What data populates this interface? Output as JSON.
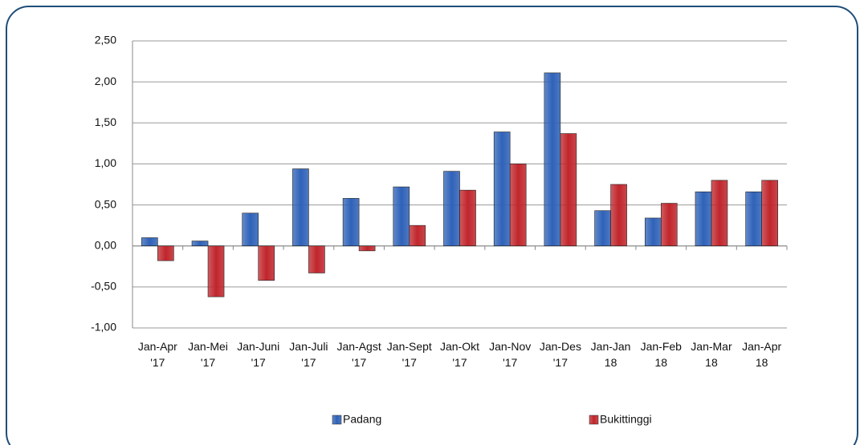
{
  "chart_data": {
    "type": "bar",
    "categories": [
      "Jan-Apr\n'17",
      "Jan-Mei\n'17",
      "Jan-Juni\n'17",
      "Jan-Juli\n'17",
      "Jan-Agst\n'17",
      "Jan-Sept\n'17",
      "Jan-Okt\n'17",
      "Jan-Nov\n'17",
      "Jan-Des\n'17",
      "Jan-Jan\n18",
      "Jan-Feb\n18",
      "Jan-Mar\n18",
      "Jan-Apr\n18"
    ],
    "series": [
      {
        "name": "Padang",
        "color": "#2f62b8",
        "values": [
          0.1,
          0.06,
          0.4,
          0.94,
          0.58,
          0.72,
          0.91,
          1.39,
          2.11,
          0.43,
          0.34,
          0.66,
          0.66
        ]
      },
      {
        "name": "Bukittinggi",
        "color": "#c0262c",
        "values": [
          -0.18,
          -0.62,
          -0.42,
          -0.33,
          -0.06,
          0.25,
          0.68,
          1.0,
          1.37,
          0.75,
          0.52,
          0.8,
          0.8
        ]
      }
    ],
    "ylim": [
      -1,
      2.5
    ],
    "yticks": [
      {
        "value": -1,
        "label": "-1,00"
      },
      {
        "value": -0.5,
        "label": "-0,50"
      },
      {
        "value": 0,
        "label": "0,00"
      },
      {
        "value": 0.5,
        "label": "0,50"
      },
      {
        "value": 1,
        "label": "1,00"
      },
      {
        "value": 1.5,
        "label": "1,50"
      },
      {
        "value": 2,
        "label": "2,00"
      },
      {
        "value": 2.5,
        "label": "2,50"
      }
    ],
    "grid": true
  }
}
